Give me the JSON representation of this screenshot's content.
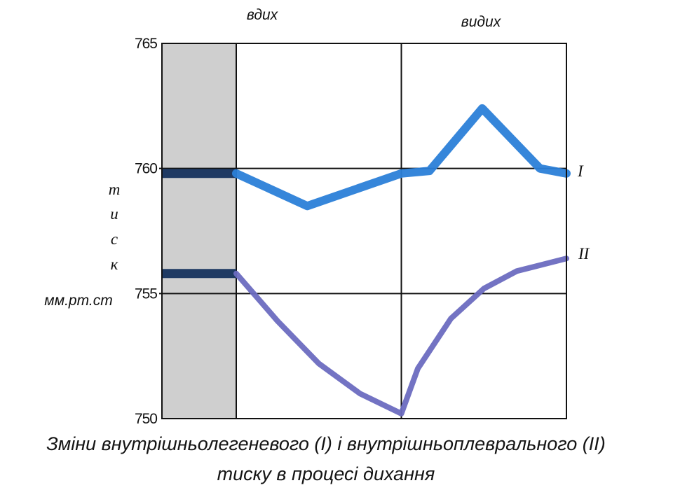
{
  "caption": {
    "line1": "Зміни внутрішньолегеневого (I) і внутрішньоплеврального (II)",
    "line2": "тиску в процесі дихання"
  },
  "chart_data": {
    "type": "line",
    "title": "",
    "phases": [
      "вдих",
      "видих"
    ],
    "ylabel_letters": [
      "т",
      "и",
      "с",
      "к"
    ],
    "ylabel_unit": "мм.рт.ст",
    "ylim": [
      750,
      765
    ],
    "yticks": [
      765,
      760,
      755,
      750
    ],
    "x_domain": [
      -1,
      2
    ],
    "grid": true,
    "baseline_band": {
      "x_range": [
        -1,
        0
      ],
      "fill": "#cfcfcf"
    },
    "series": [
      {
        "name": "I",
        "color": "#2b7fd8",
        "x": [
          -1,
          0,
          0.43,
          1,
          1.17,
          1.49,
          1.84,
          2
        ],
        "y": [
          759.8,
          759.8,
          758.5,
          759.8,
          759.9,
          762.4,
          760.0,
          759.8
        ]
      },
      {
        "name": "II",
        "color": "#6b6cc0",
        "x": [
          -1,
          0,
          0.25,
          0.5,
          0.75,
          1,
          1.1,
          1.3,
          1.5,
          1.7,
          2
        ],
        "y": [
          755.8,
          755.8,
          753.9,
          752.2,
          751.0,
          750.2,
          752.0,
          754.0,
          755.2,
          755.9,
          756.4
        ]
      }
    ]
  }
}
